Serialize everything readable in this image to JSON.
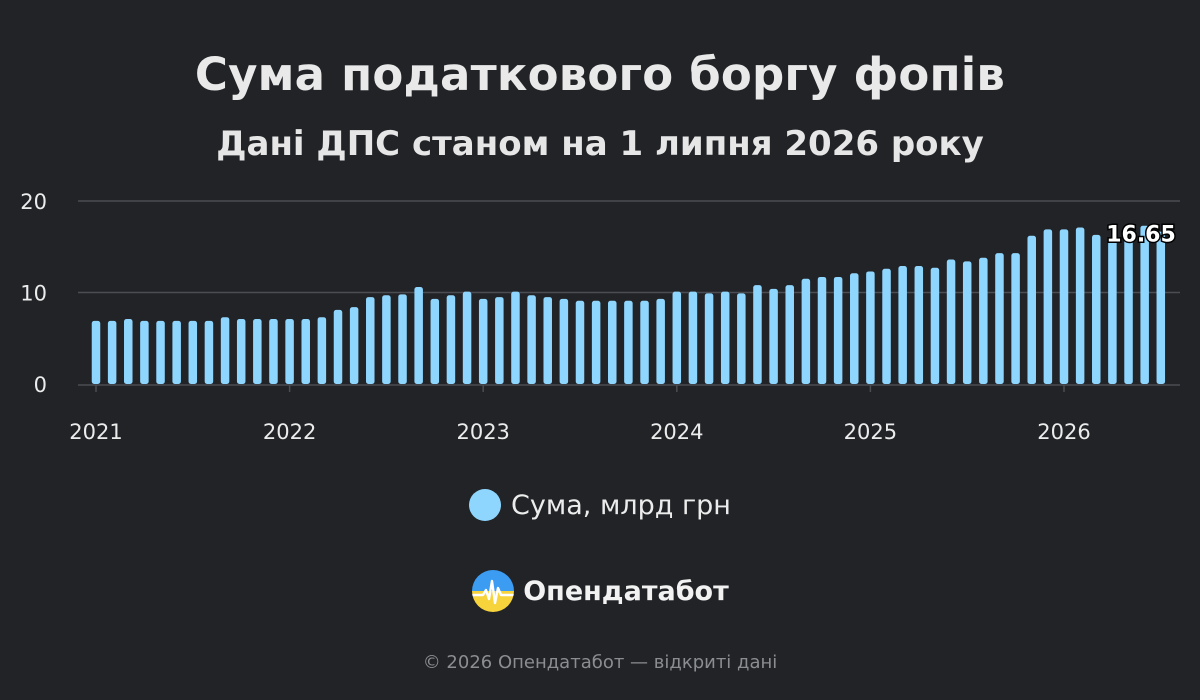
{
  "header": {
    "title": "Сума податкового боргу фопів",
    "subtitle": "Дані ДПС станом на 1 липня 2026 року"
  },
  "legend": {
    "label": "Сума, млрд грн",
    "color": "#8fd6ff"
  },
  "brand": {
    "name": "Опендатабот"
  },
  "footer": {
    "text": "© 2026 Опендатабот — відкриті дані"
  },
  "colors": {
    "background": "#212327",
    "bar": "#8fd6ff",
    "grid": "#4a4d52",
    "text": "#ececec"
  },
  "chart_data": {
    "type": "bar",
    "title": "Сума податкового боргу фопів",
    "subtitle": "Дані ДПС станом на 1 липня 2026 року",
    "xlabel": "",
    "ylabel": "",
    "ylim": [
      0,
      20
    ],
    "yticks": [
      0,
      10,
      20
    ],
    "xticks": [
      "2021",
      "2022",
      "2023",
      "2024",
      "2025",
      "2026"
    ],
    "grid": true,
    "legend_position": "bottom",
    "start": "2021-01",
    "frequency": "monthly",
    "series": [
      {
        "name": "Сума, млрд грн",
        "values": [
          6.9,
          6.9,
          7.1,
          6.9,
          6.9,
          6.9,
          6.9,
          6.9,
          7.3,
          7.1,
          7.1,
          7.1,
          7.1,
          7.1,
          7.3,
          8.1,
          8.4,
          9.5,
          9.7,
          9.8,
          10.6,
          9.3,
          9.7,
          10.1,
          9.3,
          9.5,
          10.1,
          9.7,
          9.5,
          9.3,
          9.1,
          9.1,
          9.1,
          9.1,
          9.1,
          9.3,
          10.1,
          10.1,
          9.9,
          10.1,
          9.9,
          10.8,
          10.4,
          10.8,
          11.5,
          11.7,
          11.7,
          12.1,
          12.3,
          12.6,
          12.9,
          12.9,
          12.7,
          13.6,
          13.4,
          13.8,
          14.3,
          14.3,
          16.2,
          16.9,
          16.9,
          17.1,
          16.3,
          15.9,
          15.9,
          17.3,
          16.65
        ],
        "last_label": "16.65"
      }
    ]
  }
}
